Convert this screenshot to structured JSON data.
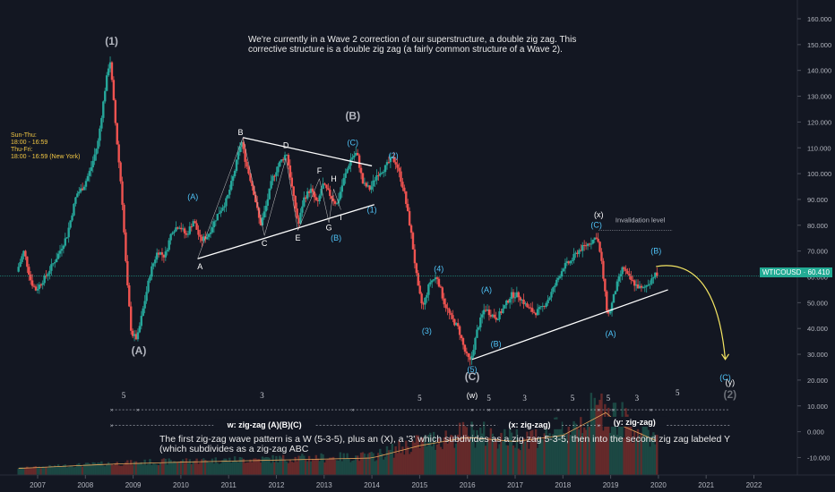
{
  "chart_data": {
    "type": "candlestick",
    "symbol": "WTICOUSD",
    "last_price": "60.410",
    "x_ticks": [
      "2007",
      "2008",
      "2009",
      "2010",
      "2011",
      "2012",
      "2013",
      "2014",
      "2015",
      "2016",
      "2017",
      "2018",
      "2019",
      "2020",
      "2021",
      "2022"
    ],
    "y_ticks": [
      "160.000",
      "150.000",
      "140.000",
      "130.000",
      "120.000",
      "110.000",
      "100.000",
      "90.000",
      "80.000",
      "70.000",
      "60.000",
      "50.000",
      "40.000",
      "30.000",
      "20.000",
      "10.000",
      "0.000",
      "-10.000"
    ],
    "ylim": [
      -15,
      165
    ],
    "xlim": [
      2006.6,
      2022.8
    ],
    "price_path": [
      [
        2006.6,
        62
      ],
      [
        2006.75,
        70
      ],
      [
        2006.9,
        58
      ],
      [
        2007.0,
        55
      ],
      [
        2007.2,
        60
      ],
      [
        2007.45,
        68
      ],
      [
        2007.65,
        76
      ],
      [
        2007.85,
        92
      ],
      [
        2008.0,
        95
      ],
      [
        2008.15,
        102
      ],
      [
        2008.3,
        112
      ],
      [
        2008.45,
        133
      ],
      [
        2008.55,
        145
      ],
      [
        2008.6,
        134
      ],
      [
        2008.7,
        112
      ],
      [
        2008.8,
        92
      ],
      [
        2008.9,
        60
      ],
      [
        2009.0,
        38
      ],
      [
        2009.12,
        36
      ],
      [
        2009.25,
        48
      ],
      [
        2009.4,
        62
      ],
      [
        2009.55,
        70
      ],
      [
        2009.7,
        68
      ],
      [
        2009.85,
        78
      ],
      [
        2010.0,
        80
      ],
      [
        2010.15,
        76
      ],
      [
        2010.3,
        82
      ],
      [
        2010.45,
        74
      ],
      [
        2010.6,
        76
      ],
      [
        2010.8,
        84
      ],
      [
        2011.0,
        90
      ],
      [
        2011.15,
        100
      ],
      [
        2011.3,
        113
      ],
      [
        2011.4,
        104
      ],
      [
        2011.55,
        94
      ],
      [
        2011.7,
        80
      ],
      [
        2011.8,
        86
      ],
      [
        2011.95,
        98
      ],
      [
        2012.1,
        104
      ],
      [
        2012.25,
        108
      ],
      [
        2012.4,
        90
      ],
      [
        2012.5,
        80
      ],
      [
        2012.6,
        90
      ],
      [
        2012.75,
        94
      ],
      [
        2012.9,
        88
      ],
      [
        2013.0,
        96
      ],
      [
        2013.15,
        92
      ],
      [
        2013.3,
        88
      ],
      [
        2013.45,
        98
      ],
      [
        2013.6,
        106
      ],
      [
        2013.72,
        108
      ],
      [
        2013.85,
        96
      ],
      [
        2014.0,
        94
      ],
      [
        2014.15,
        100
      ],
      [
        2014.3,
        102
      ],
      [
        2014.45,
        106
      ],
      [
        2014.55,
        104
      ],
      [
        2014.7,
        94
      ],
      [
        2014.85,
        78
      ],
      [
        2015.0,
        56
      ],
      [
        2015.1,
        48
      ],
      [
        2015.25,
        58
      ],
      [
        2015.4,
        60
      ],
      [
        2015.55,
        50
      ],
      [
        2015.7,
        44
      ],
      [
        2015.85,
        40
      ],
      [
        2016.0,
        30
      ],
      [
        2016.1,
        27
      ],
      [
        2016.25,
        40
      ],
      [
        2016.4,
        48
      ],
      [
        2016.5,
        46
      ],
      [
        2016.65,
        44
      ],
      [
        2016.8,
        48
      ],
      [
        2016.95,
        53
      ],
      [
        2017.1,
        53
      ],
      [
        2017.3,
        48
      ],
      [
        2017.45,
        46
      ],
      [
        2017.6,
        48
      ],
      [
        2017.75,
        52
      ],
      [
        2017.9,
        58
      ],
      [
        2018.05,
        64
      ],
      [
        2018.2,
        66
      ],
      [
        2018.35,
        70
      ],
      [
        2018.5,
        72
      ],
      [
        2018.65,
        74
      ],
      [
        2018.75,
        76
      ],
      [
        2018.85,
        65
      ],
      [
        2018.95,
        48
      ],
      [
        2019.0,
        45
      ],
      [
        2019.15,
        56
      ],
      [
        2019.3,
        64
      ],
      [
        2019.4,
        60
      ],
      [
        2019.55,
        57
      ],
      [
        2019.7,
        55
      ],
      [
        2019.85,
        58
      ],
      [
        2019.95,
        61
      ],
      [
        2020.0,
        60.4
      ]
    ],
    "volume_profile": [
      [
        2006.6,
        1
      ],
      [
        2008.5,
        3
      ],
      [
        2010.0,
        4
      ],
      [
        2012.0,
        5
      ],
      [
        2014.0,
        6
      ],
      [
        2015.0,
        12
      ],
      [
        2016.0,
        16
      ],
      [
        2017.0,
        14
      ],
      [
        2018.0,
        17
      ],
      [
        2018.9,
        28
      ],
      [
        2019.2,
        22
      ],
      [
        2019.6,
        18
      ],
      [
        2020.0,
        14
      ]
    ],
    "wave_labels": [
      {
        "text": "(1)",
        "x": 2008.55,
        "y": 150,
        "color": "#b2b5be",
        "size": "big"
      },
      {
        "text": "(A)",
        "x": 2009.12,
        "y": 30,
        "color": "#b2b5be",
        "size": "big"
      },
      {
        "text": "(B)",
        "x": 2013.6,
        "y": 121,
        "color": "#b2b5be",
        "size": "big"
      },
      {
        "text": "(C)",
        "x": 2016.1,
        "y": 20,
        "color": "#b2b5be",
        "size": "big"
      },
      {
        "text": "(2)",
        "x": 2021.5,
        "y": 13,
        "color": "#6b6f77",
        "size": "big"
      },
      {
        "text": "A",
        "x": 2010.4,
        "y": 63,
        "color": "#ffffff",
        "size": "small"
      },
      {
        "text": "B",
        "x": 2011.25,
        "y": 115,
        "color": "#ffffff",
        "size": "small"
      },
      {
        "text": "C",
        "x": 2011.75,
        "y": 72,
        "color": "#ffffff",
        "size": "small"
      },
      {
        "text": "D",
        "x": 2012.2,
        "y": 110,
        "color": "#ffffff",
        "size": "small"
      },
      {
        "text": "E",
        "x": 2012.45,
        "y": 74,
        "color": "#ffffff",
        "size": "small"
      },
      {
        "text": "F",
        "x": 2012.9,
        "y": 100,
        "color": "#ffffff",
        "size": "small"
      },
      {
        "text": "G",
        "x": 2013.1,
        "y": 78,
        "color": "#ffffff",
        "size": "small"
      },
      {
        "text": "H",
        "x": 2013.2,
        "y": 97,
        "color": "#ffffff",
        "size": "small"
      },
      {
        "text": "I",
        "x": 2013.35,
        "y": 82,
        "color": "#ffffff",
        "size": "small"
      },
      {
        "text": "(A)",
        "x": 2010.25,
        "y": 90,
        "color": "#4fc3f7",
        "size": "small"
      },
      {
        "text": "(C)",
        "x": 2013.6,
        "y": 111,
        "color": "#4fc3f7",
        "size": "small"
      },
      {
        "text": "(2)",
        "x": 2014.45,
        "y": 106,
        "color": "#4fc3f7",
        "size": "small"
      },
      {
        "text": "(1)",
        "x": 2014.0,
        "y": 85,
        "color": "#4fc3f7",
        "size": "small"
      },
      {
        "text": "(B)",
        "x": 2013.25,
        "y": 74,
        "color": "#4fc3f7",
        "size": "small"
      },
      {
        "text": "(4)",
        "x": 2015.4,
        "y": 62,
        "color": "#4fc3f7",
        "size": "small"
      },
      {
        "text": "(3)",
        "x": 2015.15,
        "y": 38,
        "color": "#4fc3f7",
        "size": "small"
      },
      {
        "text": "(5)",
        "x": 2016.1,
        "y": 23,
        "color": "#4fc3f7",
        "size": "small"
      },
      {
        "text": "(A)",
        "x": 2016.4,
        "y": 54,
        "color": "#4fc3f7",
        "size": "small"
      },
      {
        "text": "(B)",
        "x": 2016.6,
        "y": 33,
        "color": "#4fc3f7",
        "size": "small"
      },
      {
        "text": "(C)",
        "x": 2018.7,
        "y": 79,
        "color": "#4fc3f7",
        "size": "small"
      },
      {
        "text": "(A)",
        "x": 2019.0,
        "y": 37,
        "color": "#4fc3f7",
        "size": "small"
      },
      {
        "text": "(B)",
        "x": 2019.95,
        "y": 69,
        "color": "#4fc3f7",
        "size": "small"
      },
      {
        "text": "(C)",
        "x": 2021.4,
        "y": 20,
        "color": "#4fc3f7",
        "size": "small"
      },
      {
        "text": "(x)",
        "x": 2018.75,
        "y": 83,
        "color": "#ffffff",
        "size": "small"
      },
      {
        "text": "(y)",
        "x": 2021.5,
        "y": 18,
        "color": "#ffffff",
        "size": "small"
      },
      {
        "text": "(w)",
        "x": 2016.1,
        "y": 13,
        "color": "#ffffff",
        "size": "small"
      }
    ],
    "count_labels": [
      {
        "text": "5",
        "x": 2008.8,
        "y": 13
      },
      {
        "text": "3",
        "x": 2011.7,
        "y": 13
      },
      {
        "text": "5",
        "x": 2015.0,
        "y": 12
      },
      {
        "text": "5",
        "x": 2016.45,
        "y": 12
      },
      {
        "text": "3",
        "x": 2017.2,
        "y": 12
      },
      {
        "text": "5",
        "x": 2018.2,
        "y": 12
      },
      {
        "text": "5",
        "x": 2018.95,
        "y": 12
      },
      {
        "text": "3",
        "x": 2019.55,
        "y": 12
      },
      {
        "text": "5",
        "x": 2020.4,
        "y": 14
      }
    ],
    "segment_labels": [
      {
        "text": "w: zig-zag (A)(B)(C)",
        "x": 2011.75,
        "y": 2
      },
      {
        "text": "(x: zig-zag)",
        "x": 2017.3,
        "y": 2
      },
      {
        "text": "(y: zig-zag)",
        "x": 2019.5,
        "y": 3
      }
    ],
    "annotations": {
      "top_note": "We're currently in a Wave 2 correction of our superstructure, a double zig zag. This corrective structure is a double zig zag (a fairly common structure of a Wave 2).",
      "bottom_note": "The first zig-zag wave pattern is a W (5-3-5), plus an (X), a '3' which subdivides as a zig zag 5-3-5, then into the second zig zag labeled Y (which subdivides as a zig-zag ABC",
      "invalidation": "Invalidation level",
      "session_lines": [
        "Sun-Thu:",
        "18:00 - 16:59",
        "Thu-Fri:",
        "18:00 - 16:59 (New York)"
      ]
    },
    "colors": {
      "up": "#26a69a",
      "down": "#ef5350",
      "background": "#131722",
      "price_line": "#22ab94",
      "projection": "#f5e663",
      "trendline": "#ffffff"
    }
  }
}
